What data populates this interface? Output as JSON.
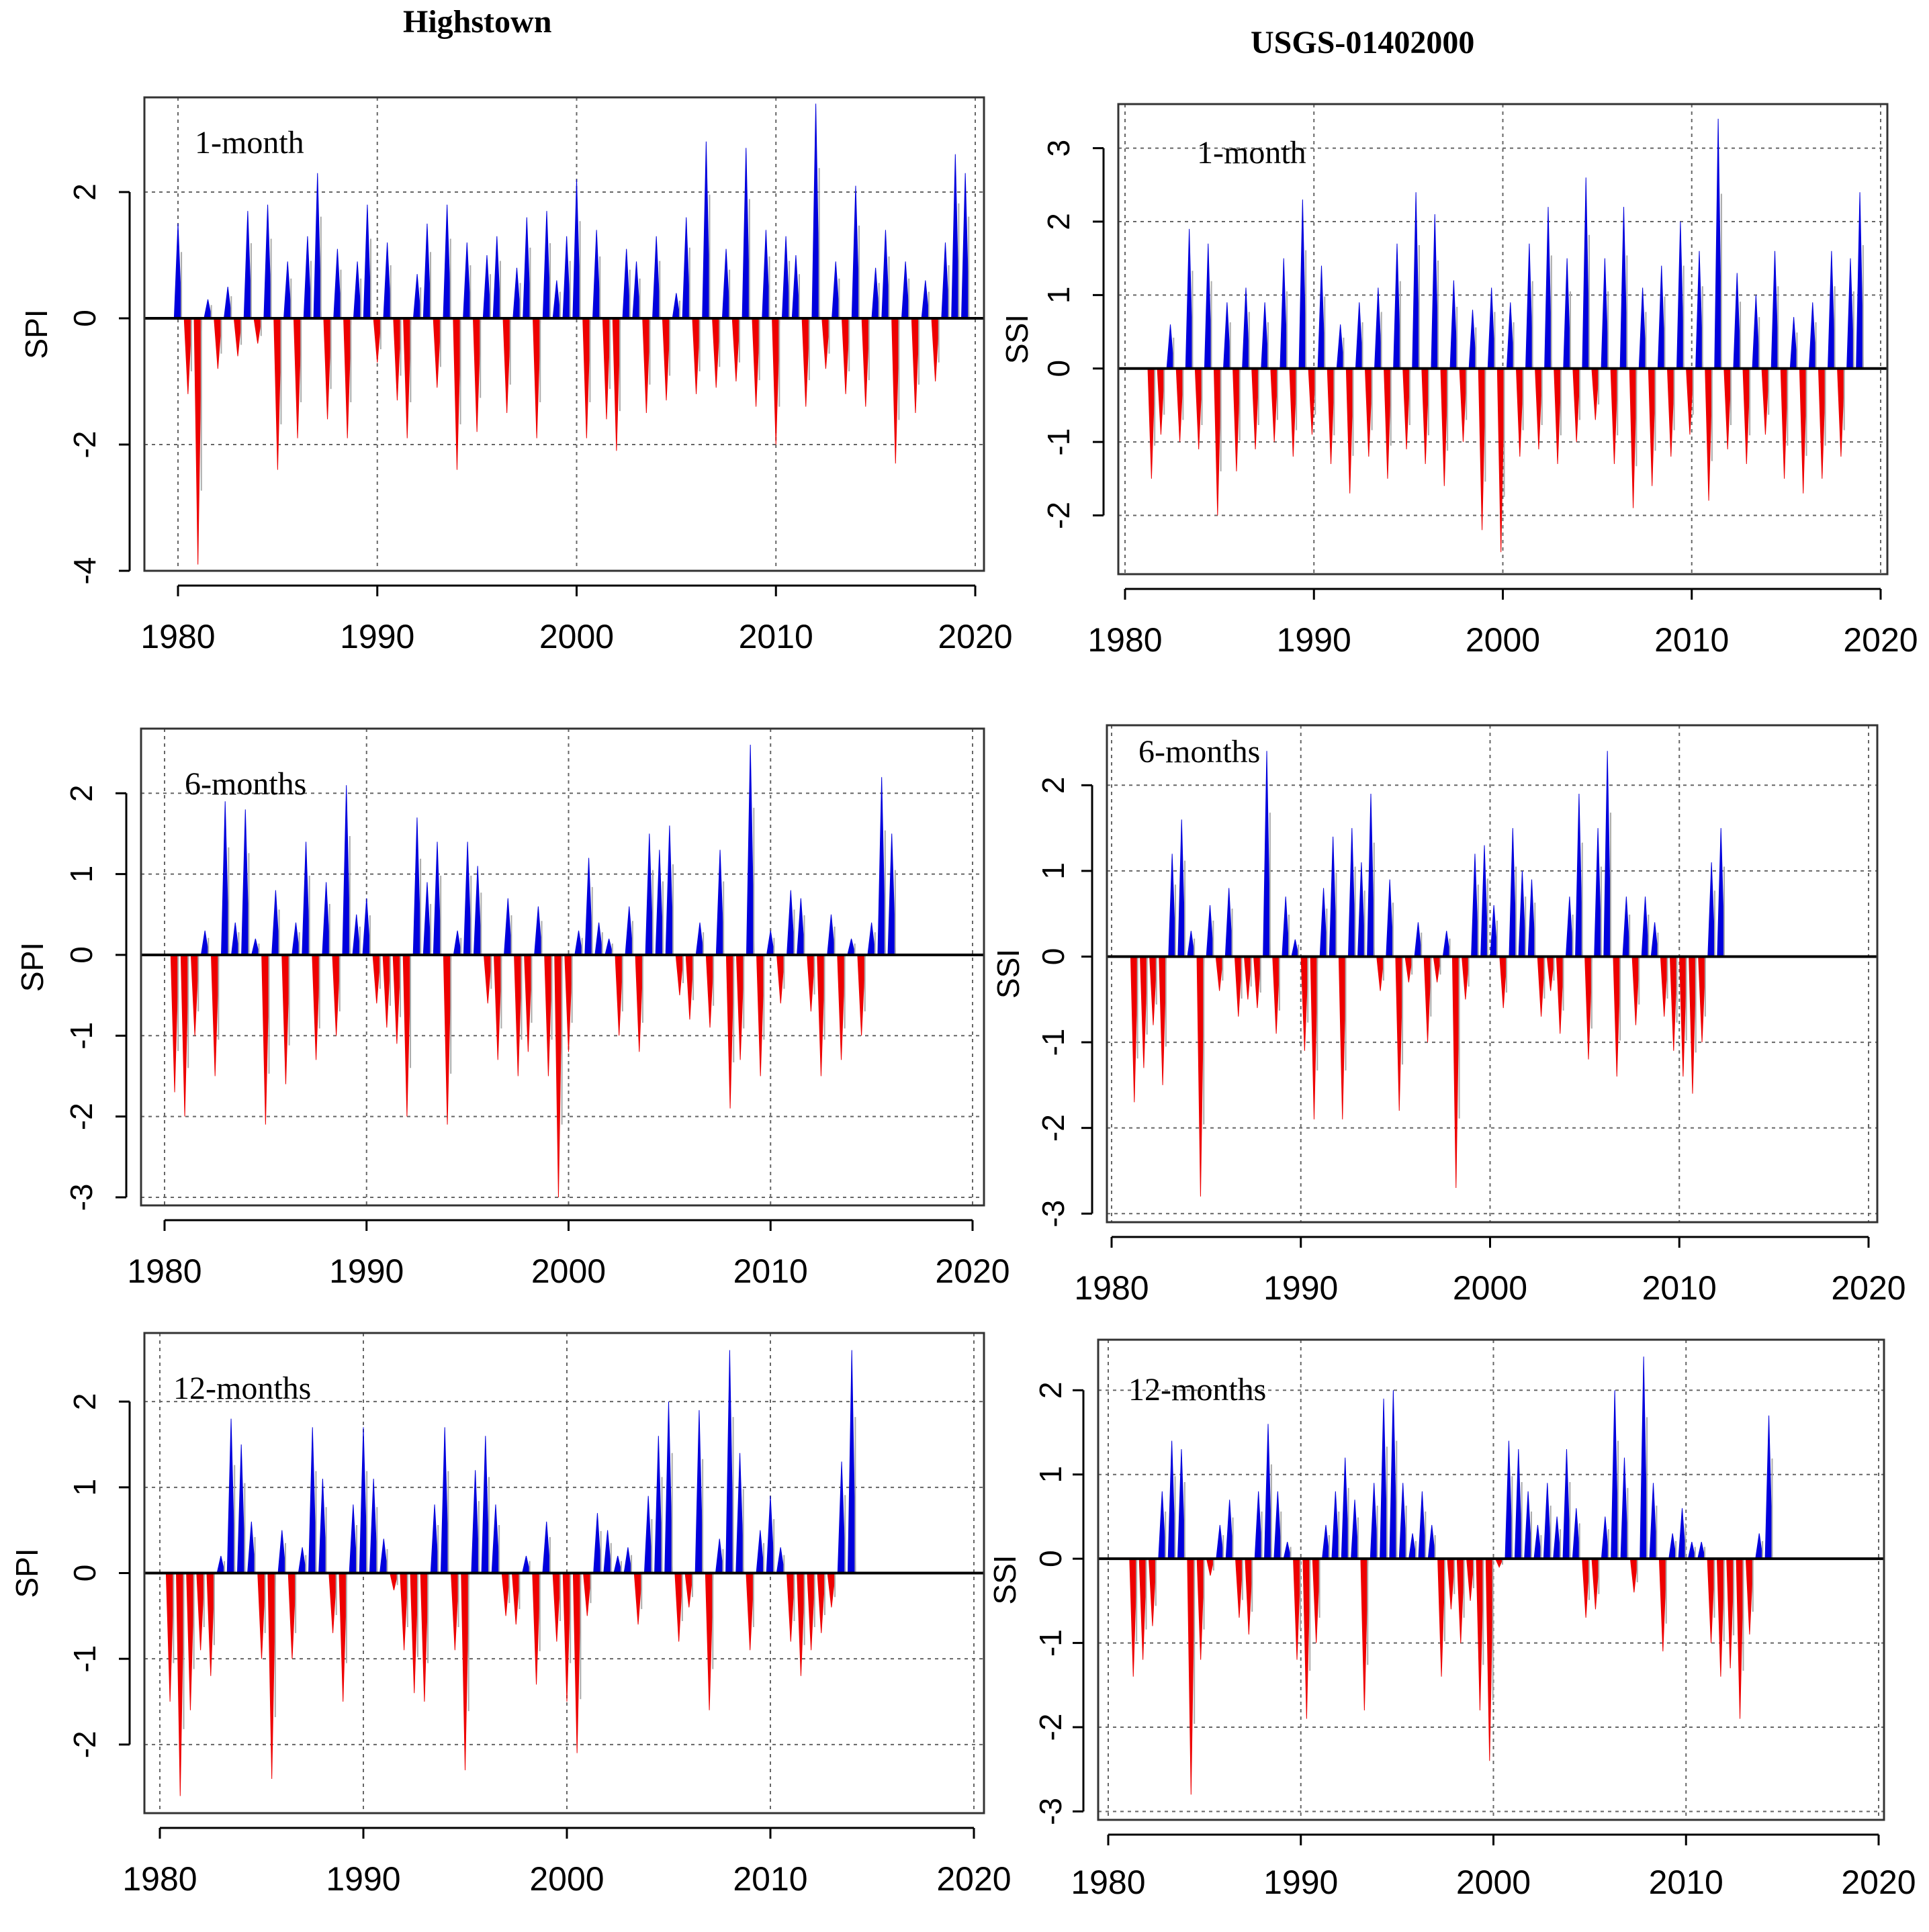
{
  "titles": {
    "left": "Highstown",
    "right": "USGS-01402000"
  },
  "colors": {
    "positive": "#0000dd",
    "negative": "#ee0000",
    "transition": "#aaaaaa",
    "grid": "#666666"
  },
  "chart_data": [
    {
      "type": "area",
      "label": "1-month",
      "ylabel": "SPI",
      "xlim": [
        1980,
        2020
      ],
      "ylim": [
        -4,
        3.5
      ],
      "xticks": [
        "1980",
        "1990",
        "2000",
        "2010",
        "2020"
      ],
      "yticks": [
        -4,
        -2,
        0,
        2
      ],
      "x_start": 1980,
      "dx": 0.5,
      "grid": true,
      "values": [
        1.5,
        -1.2,
        -3.9,
        0.3,
        -0.8,
        0.5,
        -0.6,
        1.7,
        -0.4,
        1.8,
        -2.4,
        0.9,
        -1.9,
        1.3,
        2.3,
        -1.6,
        1.1,
        -1.9,
        0.9,
        1.8,
        -0.7,
        1.2,
        -1.3,
        -1.9,
        0.7,
        1.5,
        -1.1,
        1.8,
        -2.4,
        1.2,
        -1.8,
        1.0,
        1.3,
        -1.5,
        0.8,
        1.6,
        -1.9,
        1.7,
        0.6,
        1.3,
        2.2,
        -1.9,
        1.4,
        -1.6,
        -2.1,
        1.1,
        0.9,
        -1.5,
        1.3,
        -1.3,
        0.4,
        1.6,
        -1.2,
        2.8,
        -1.1,
        1.1,
        -1.0,
        2.7,
        -1.4,
        1.4,
        -2.0,
        1.3,
        1.0,
        -1.4,
        3.4,
        -0.8,
        0.9,
        -1.2,
        2.1,
        -1.4,
        0.8,
        1.4,
        -2.3,
        0.9,
        -1.5,
        0.6,
        -1.0,
        1.2,
        2.6,
        2.3
      ]
    },
    {
      "type": "area",
      "label": "1-month",
      "ylabel": "SSI",
      "xlim": [
        1980,
        2020
      ],
      "ylim": [
        -2.8,
        3.6
      ],
      "xticks": [
        "1980",
        "1990",
        "2000",
        "2010",
        "2020"
      ],
      "yticks": [
        -2,
        -1,
        0,
        1,
        2,
        3
      ],
      "x_start": 1981.4,
      "dx": 0.5,
      "grid": true,
      "values": [
        -1.5,
        -0.9,
        0.6,
        -1.0,
        1.9,
        -1.1,
        1.7,
        -2.0,
        0.9,
        -1.4,
        1.1,
        -1.1,
        0.9,
        -1.0,
        1.5,
        -1.2,
        2.3,
        -0.9,
        1.4,
        -1.3,
        0.6,
        -1.7,
        0.9,
        -1.2,
        1.1,
        -1.5,
        1.7,
        -1.1,
        2.4,
        -1.3,
        2.1,
        -1.6,
        1.2,
        -1.0,
        0.8,
        -2.2,
        1.1,
        -2.5,
        0.9,
        -1.2,
        1.7,
        -1.1,
        2.2,
        -1.3,
        1.5,
        -1.0,
        2.6,
        -0.7,
        1.5,
        -1.3,
        2.2,
        -1.9,
        1.1,
        -1.6,
        1.4,
        -1.2,
        2.0,
        -0.9,
        1.6,
        -1.8,
        3.4,
        -1.1,
        1.3,
        -1.3,
        1.0,
        -0.9,
        1.6,
        -1.5,
        0.7,
        -1.7,
        0.9,
        -1.5,
        1.6,
        -1.2,
        1.5,
        2.4
      ]
    },
    {
      "type": "area",
      "label": "6-months",
      "ylabel": "SPI",
      "xlim": [
        1980,
        2020
      ],
      "ylim": [
        -3.1,
        2.8
      ],
      "xticks": [
        "1980",
        "1990",
        "2000",
        "2010",
        "2020"
      ],
      "yticks": [
        -3,
        -2,
        -1,
        0,
        1,
        2
      ],
      "x_start": 1980.5,
      "dx": 0.5,
      "grid": true,
      "values": [
        -1.7,
        -2.0,
        -1.0,
        0.3,
        -1.5,
        1.9,
        0.4,
        1.8,
        0.2,
        -2.1,
        0.8,
        -1.6,
        0.4,
        1.4,
        -1.3,
        0.9,
        -1.0,
        2.1,
        0.5,
        0.7,
        -0.6,
        -0.9,
        -1.1,
        -2.0,
        1.7,
        0.9,
        1.4,
        -2.1,
        0.3,
        1.4,
        1.1,
        -0.6,
        -1.3,
        0.7,
        -1.5,
        -1.2,
        0.6,
        -1.5,
        -3.0,
        -1.2,
        0.3,
        1.2,
        0.4,
        0.2,
        -1.0,
        0.6,
        -1.2,
        1.5,
        1.3,
        1.6,
        -0.5,
        -0.8,
        0.4,
        -0.9,
        1.3,
        -1.9,
        -1.3,
        2.6,
        -1.5,
        0.3,
        -0.6,
        0.8,
        0.7,
        -0.7,
        -1.5,
        0.5,
        -1.3,
        0.2,
        -1.0,
        0.4,
        2.2,
        1.5
      ]
    },
    {
      "type": "area",
      "label": "6-months",
      "ylabel": "SSI",
      "xlim": [
        1980,
        2020
      ],
      "ylim": [
        -3.1,
        2.7
      ],
      "xticks": [
        "1980",
        "1990",
        "2000",
        "2010",
        "2020"
      ],
      "yticks": [
        -3,
        -2,
        -1,
        0,
        1,
        2
      ],
      "x_start": 1981.2,
      "dx": 0.5,
      "grid": true,
      "values": [
        -1.7,
        -1.3,
        -0.8,
        -1.5,
        1.2,
        1.6,
        0.3,
        -2.8,
        0.6,
        -0.4,
        0.8,
        -0.7,
        -0.5,
        -0.6,
        2.4,
        -0.9,
        0.7,
        0.2,
        -1.1,
        -1.9,
        0.8,
        1.4,
        -1.9,
        1.5,
        1.1,
        1.9,
        -0.4,
        0.9,
        -1.8,
        -0.3,
        0.4,
        -1.0,
        -0.3,
        0.3,
        -2.7,
        -0.5,
        1.2,
        1.3,
        0.6,
        -0.6,
        1.5,
        1.0,
        0.9,
        -0.7,
        -0.4,
        -0.9,
        0.7,
        1.9,
        -1.2,
        1.5,
        2.4,
        -1.4,
        0.7,
        -0.8,
        0.7,
        0.4,
        -0.7,
        -1.1,
        -1.4,
        -1.6,
        -1.0,
        1.1,
        1.5
      ]
    },
    {
      "type": "area",
      "label": "12-months",
      "ylabel": "SPI",
      "xlim": [
        1980,
        2020
      ],
      "ylim": [
        -2.8,
        2.8
      ],
      "xticks": [
        "1980",
        "1990",
        "2000",
        "2010",
        "2020"
      ],
      "yticks": [
        -2,
        -1,
        0,
        1,
        2
      ],
      "x_start": 1980.5,
      "dx": 0.5,
      "grid": true,
      "values": [
        -1.5,
        -2.6,
        -1.6,
        -0.9,
        -1.2,
        0.2,
        1.8,
        1.5,
        0.6,
        -1.0,
        -2.4,
        0.5,
        -1.0,
        0.3,
        1.7,
        1.1,
        -0.7,
        -1.5,
        0.8,
        1.7,
        1.1,
        0.4,
        -0.2,
        -0.9,
        -1.4,
        -1.5,
        0.8,
        1.7,
        -0.9,
        -2.3,
        1.2,
        1.6,
        0.8,
        -0.5,
        -0.6,
        0.2,
        -1.3,
        0.6,
        -0.8,
        -1.5,
        -2.1,
        -0.5,
        0.7,
        0.5,
        0.2,
        0.3,
        -0.6,
        0.9,
        1.6,
        2.0,
        -0.8,
        -0.4,
        1.9,
        -1.6,
        0.4,
        2.6,
        1.4,
        -0.9,
        0.5,
        0.9,
        0.3,
        -0.8,
        -1.2,
        -0.9,
        -0.7,
        -0.4,
        1.3,
        2.6
      ]
    },
    {
      "type": "area",
      "label": "12-months",
      "ylabel": "SSI",
      "xlim": [
        1980,
        2020
      ],
      "ylim": [
        -3.1,
        2.6
      ],
      "xticks": [
        "1980",
        "1990",
        "2000",
        "2010",
        "2020"
      ],
      "yticks": [
        -3,
        -2,
        -1,
        0,
        1,
        2
      ],
      "x_start": 1981.3,
      "dx": 0.5,
      "grid": true,
      "values": [
        -1.4,
        -1.2,
        -0.8,
        0.8,
        1.4,
        1.3,
        -2.8,
        -1.2,
        -0.2,
        0.4,
        0.7,
        -0.7,
        -0.9,
        0.8,
        1.6,
        0.8,
        0.2,
        -1.2,
        -1.9,
        -1.0,
        0.4,
        0.8,
        1.2,
        0.7,
        -1.8,
        0.9,
        1.9,
        2.0,
        0.9,
        0.3,
        0.8,
        0.4,
        -1.4,
        -0.6,
        -1.0,
        -0.5,
        -1.8,
        -2.4,
        -0.1,
        1.4,
        1.3,
        0.8,
        0.4,
        0.9,
        0.5,
        1.3,
        0.6,
        -0.7,
        -0.6,
        0.5,
        2.0,
        1.2,
        -0.4,
        2.4,
        0.9,
        -1.1,
        0.3,
        0.6,
        0.2,
        0.2,
        -1.0,
        -1.4,
        -1.3,
        -1.9,
        -0.9,
        0.3,
        1.7
      ]
    }
  ]
}
